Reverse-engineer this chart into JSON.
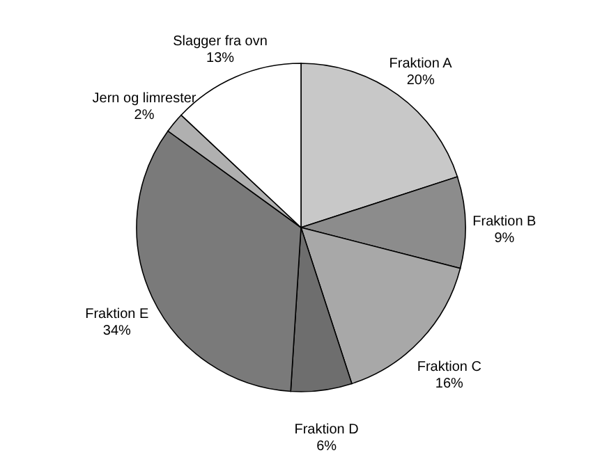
{
  "chart_data": {
    "type": "pie",
    "categories": [
      "Fraktion A",
      "Fraktion B",
      "Fraktion C",
      "Fraktion D",
      "Fraktion E",
      "Jern og limrester",
      "Slagger fra ovn"
    ],
    "values": [
      20,
      9,
      16,
      6,
      34,
      2,
      13
    ],
    "value_labels": [
      "20%",
      "9%",
      "16%",
      "6%",
      "34%",
      "2%",
      "13%"
    ],
    "colors": [
      "#c8c8c8",
      "#8c8c8c",
      "#a8a8a8",
      "#6e6e6e",
      "#7a7a7a",
      "#b0b0b0",
      "#ffffff"
    ]
  }
}
